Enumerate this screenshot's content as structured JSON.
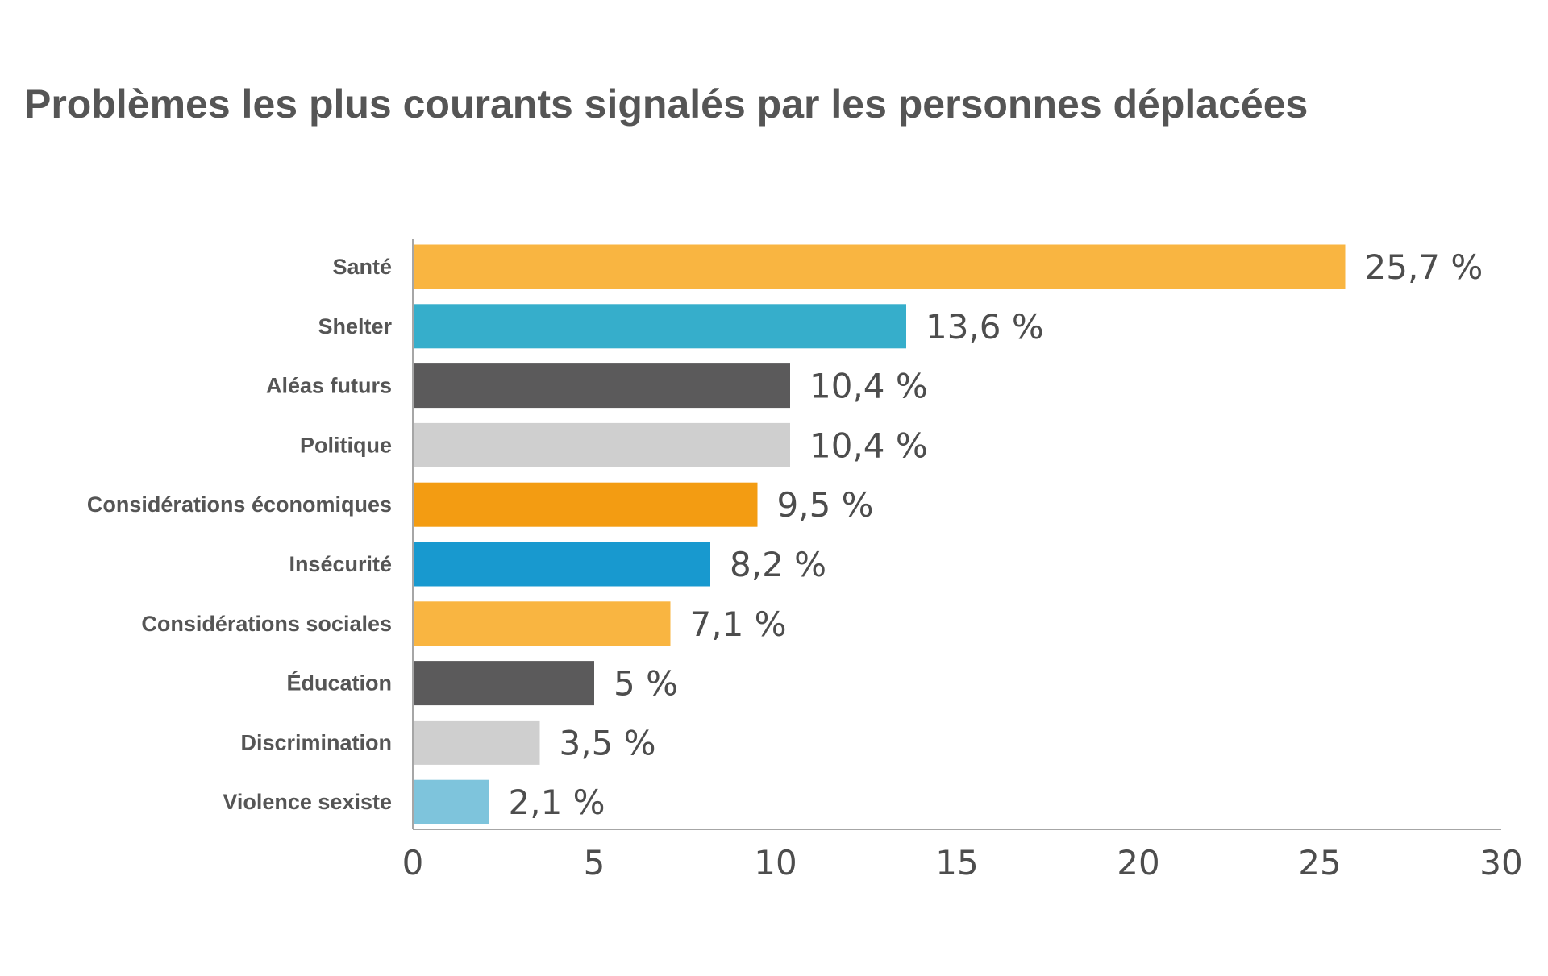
{
  "chart_data": {
    "type": "bar",
    "orientation": "horizontal",
    "title": "Problèmes les plus courants signalés par les personnes déplacées",
    "categories": [
      "Santé",
      "Shelter",
      "Aléas futurs",
      "Politique",
      "Considérations économiques",
      "Insécurité",
      "Considérations sociales",
      "Éducation",
      "Discrimination",
      "Violence sexiste"
    ],
    "values": [
      25.7,
      13.6,
      10.4,
      10.4,
      9.5,
      8.2,
      7.1,
      5,
      3.5,
      2.1
    ],
    "value_labels": [
      "25,7 %",
      "13,6 %",
      "10,4 %",
      "10,4 %",
      "9,5 %",
      "8,2 %",
      "7,1 %",
      "5 %",
      "3,5 %",
      "2,1 %"
    ],
    "colors": [
      "#f9b541",
      "#36aecb",
      "#5b5a5b",
      "#cfcfcf",
      "#f39c12",
      "#1899cf",
      "#f9b541",
      "#5b5a5b",
      "#cfcfcf",
      "#7ec4dc"
    ],
    "xlim": [
      0,
      30
    ],
    "x_ticks": [
      0,
      5,
      10,
      15,
      20,
      25,
      30
    ],
    "x_tick_labels": [
      "0",
      "5",
      "10",
      "15",
      "20",
      "25",
      "30"
    ],
    "xlabel": "",
    "ylabel": "",
    "grid": false,
    "legend": "none"
  }
}
